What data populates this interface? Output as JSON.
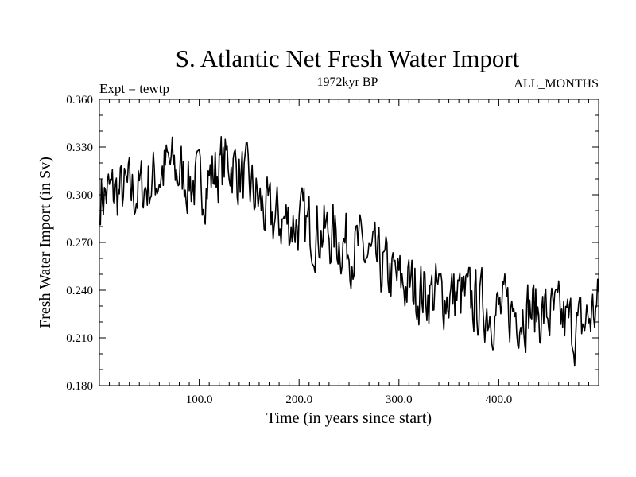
{
  "chart_data": {
    "type": "line",
    "title": "S. Atlantic Net Fresh Water Import",
    "subtitle": "1972kyr BP",
    "annotation_left": "Expt = tewtp",
    "annotation_right": "ALL_MONTHS",
    "xlabel": "Time (in years since start)",
    "ylabel": "Fresh Water Import (in Sv)",
    "xlim": [
      0,
      500
    ],
    "ylim": [
      0.18,
      0.36
    ],
    "x_ticks": [
      100,
      200,
      300,
      400
    ],
    "x_tick_labels": [
      "100.0",
      "200.0",
      "300.0",
      "400.0"
    ],
    "y_ticks": [
      0.18,
      0.21,
      0.24,
      0.27,
      0.3,
      0.33,
      0.36
    ],
    "y_tick_labels": [
      "0.180",
      "0.210",
      "0.240",
      "0.270",
      "0.300",
      "0.330",
      "0.360"
    ],
    "trend_keypoints": [
      [
        0,
        0.3
      ],
      [
        40,
        0.302
      ],
      [
        70,
        0.318
      ],
      [
        100,
        0.305
      ],
      [
        130,
        0.322
      ],
      [
        150,
        0.305
      ],
      [
        170,
        0.285
      ],
      [
        200,
        0.282
      ],
      [
        230,
        0.275
      ],
      [
        260,
        0.265
      ],
      [
        300,
        0.245
      ],
      [
        330,
        0.238
      ],
      [
        360,
        0.236
      ],
      [
        400,
        0.226
      ],
      [
        430,
        0.228
      ],
      [
        460,
        0.222
      ],
      [
        480,
        0.215
      ],
      [
        500,
        0.23
      ]
    ],
    "noise_amplitude": 0.012,
    "series": [
      {
        "name": "Fresh Water Import",
        "x_start": 1,
        "x_end": 500,
        "step": 1
      }
    ]
  }
}
